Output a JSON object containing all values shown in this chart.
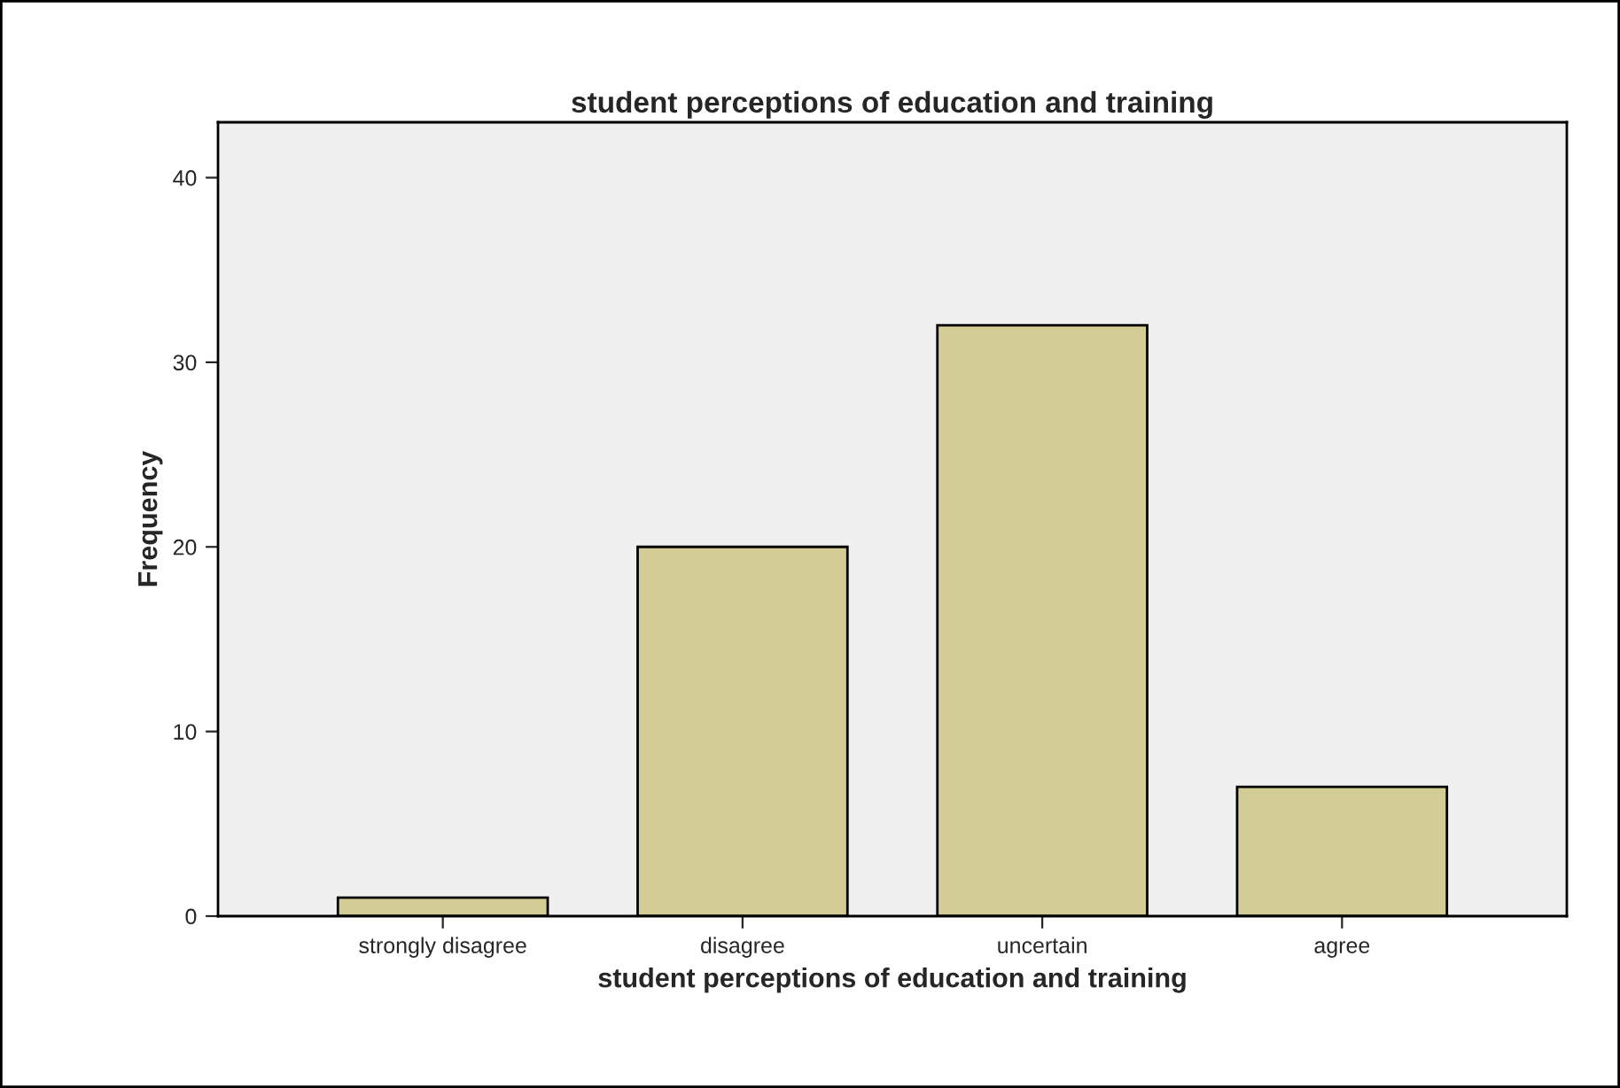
{
  "chart_data": {
    "type": "bar",
    "title": "student perceptions of education and training",
    "xlabel": "student perceptions of education and training",
    "ylabel": "Frequency",
    "categories": [
      "strongly disagree",
      "disagree",
      "uncertain",
      "agree"
    ],
    "values": [
      1,
      20,
      32,
      7
    ],
    "color": "#d3cd95",
    "ylim": [
      0,
      43
    ],
    "yticks": [
      0,
      10,
      20,
      30,
      40
    ],
    "grid": false,
    "legend": false
  }
}
